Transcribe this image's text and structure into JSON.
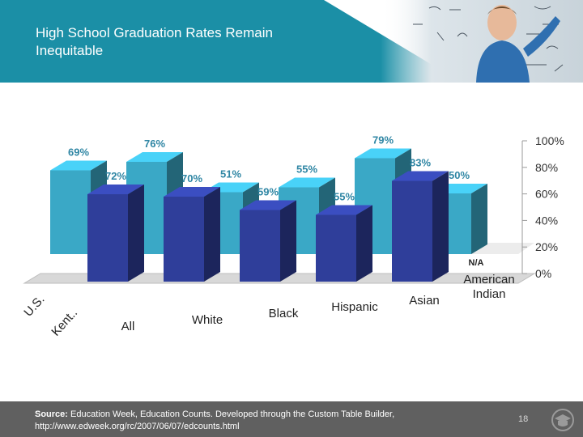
{
  "slide": {
    "title": "High School Graduation Rates Remain Inequitable",
    "page_number": "18"
  },
  "source": {
    "label": "Source:",
    "text": " Education Week, Education Counts. Developed through the Custom Table Builder,",
    "url": "http://www.edweek.org/rc/2007/06/07/edcounts.html"
  },
  "colors": {
    "title_band": "#1B8FA6",
    "series_us": "#3AA8C6",
    "series_kent": "#2F3E9A",
    "footer": "#606060"
  },
  "header_photo": {
    "icon": "teacher-at-chalkboard-photo"
  },
  "footer_icon": "graduation-cap-icon",
  "chart_data": {
    "type": "bar",
    "categories": [
      "All",
      "White",
      "Black",
      "Hispanic",
      "Asian",
      "American Indian"
    ],
    "series": [
      {
        "name": "U.S.",
        "values": [
          69,
          76,
          51,
          55,
          79,
          50
        ],
        "labels": [
          "69%",
          "76%",
          "51%",
          "55%",
          "79%",
          "50%"
        ]
      },
      {
        "name": "Kent..",
        "values": [
          72,
          70,
          59,
          55,
          83,
          null
        ],
        "labels": [
          "72%",
          "70%",
          "59%",
          "55%",
          "83%",
          "N/A"
        ]
      }
    ],
    "ylim": [
      0,
      100
    ],
    "yticks": [
      "0%",
      "20%",
      "40%",
      "60%",
      "80%",
      "100%"
    ],
    "title": "",
    "xlabel": "",
    "ylabel": ""
  }
}
